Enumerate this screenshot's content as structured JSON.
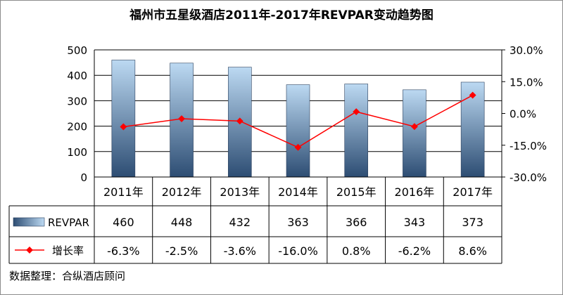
{
  "chart_data": {
    "type": "bar",
    "title": "福州市五星级酒店2011年-2017年REVPAR变动趋势图",
    "categories": [
      "2011年",
      "2012年",
      "2013年",
      "2014年",
      "2015年",
      "2016年",
      "2017年"
    ],
    "series": [
      {
        "name": "REVPAR",
        "type": "bar",
        "axis": "left",
        "values": [
          460,
          448,
          432,
          363,
          366,
          343,
          373
        ],
        "labels": [
          "460",
          "448",
          "432",
          "363",
          "366",
          "343",
          "373"
        ],
        "color_top": "#bcd9f2",
        "color_bottom": "#2d4d73"
      },
      {
        "name": "增长率",
        "type": "line",
        "axis": "right",
        "values": [
          -6.3,
          -2.5,
          -3.6,
          -16.0,
          0.8,
          -6.2,
          8.6
        ],
        "labels": [
          "-6.3%",
          "-2.5%",
          "-3.6%",
          "-16.0%",
          "0.8%",
          "-6.2%",
          "8.6%"
        ],
        "color": "#ff0000"
      }
    ],
    "y_left": {
      "min": 0,
      "max": 500,
      "ticks": [
        "0",
        "100",
        "200",
        "300",
        "400",
        "500"
      ]
    },
    "y_right": {
      "min": -30,
      "max": 30,
      "ticks": [
        "-30.0%",
        "-15.0%",
        "0.0%",
        "15.0%",
        "30.0%"
      ]
    },
    "grid": true,
    "legend": "data-table",
    "source": "数据整理：合纵酒店顾问"
  }
}
